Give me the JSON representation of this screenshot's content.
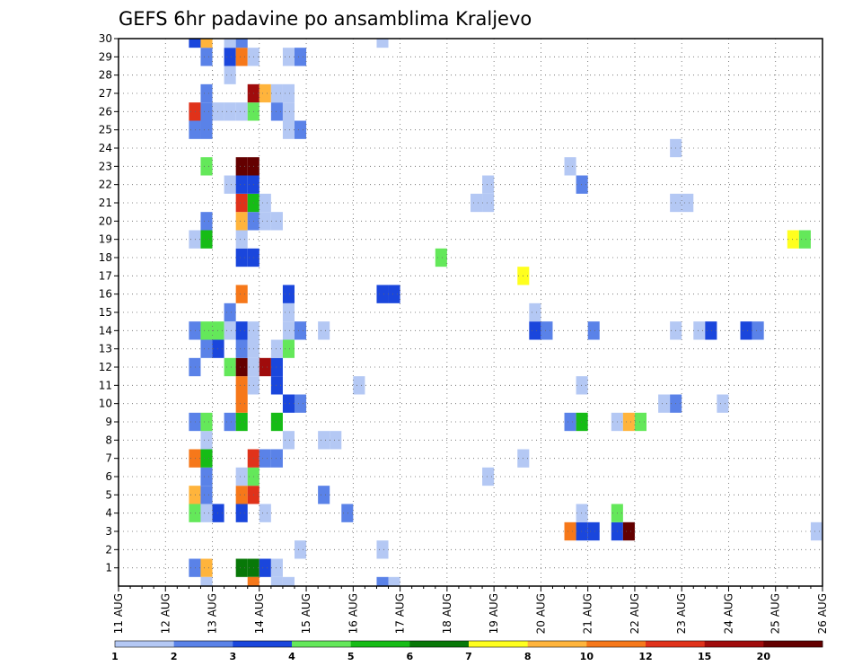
{
  "chart_data": {
    "type": "heatmap",
    "title": "GEFS 6hr padavine po ansamblima Kraljevo",
    "xlabel": "",
    "ylabel": "",
    "x_tick_labels": [
      "11 AUG",
      "12 AUG",
      "13 AUG",
      "14 AUG",
      "15 AUG",
      "16 AUG",
      "17 AUG",
      "18 AUG",
      "19 AUG",
      "20 AUG",
      "21 AUG",
      "22 AUG",
      "23 AUG",
      "24 AUG",
      "25 AUG",
      "26 AUG"
    ],
    "y_tick_labels": [
      "1",
      "2",
      "3",
      "4",
      "5",
      "6",
      "7",
      "8",
      "9",
      "10",
      "11",
      "12",
      "13",
      "14",
      "15",
      "16",
      "17",
      "18",
      "19",
      "20",
      "21",
      "22",
      "23",
      "24",
      "25",
      "26",
      "27",
      "28",
      "29",
      "30"
    ],
    "x_range_6h_steps": [
      0,
      60
    ],
    "y_range_members": [
      0,
      30
    ],
    "grid": true,
    "colorbar": {
      "labels": [
        "1",
        "2",
        "3",
        "4",
        "5",
        "6",
        "7",
        "8",
        "10",
        "12",
        "15",
        "20"
      ],
      "colors": [
        "#b4c8f4",
        "#5a82e8",
        "#1a46dc",
        "#64e85a",
        "#16bc16",
        "#087808",
        "#ffff1e",
        "#ffb43c",
        "#f6781a",
        "#e0321a",
        "#a00c0c",
        "#640000"
      ]
    },
    "cells": [
      {
        "step": 6.5,
        "member": 1,
        "value": 2
      },
      {
        "step": 7.5,
        "member": 1,
        "value": 8
      },
      {
        "step": 10.5,
        "member": 1,
        "value": 6
      },
      {
        "step": 11.5,
        "member": 1,
        "value": 6
      },
      {
        "step": 12.5,
        "member": 1,
        "value": 3
      },
      {
        "step": 13.5,
        "member": 1,
        "value": 1
      },
      {
        "step": 15.5,
        "member": 2,
        "value": 1
      },
      {
        "step": 22.5,
        "member": 2,
        "value": 1
      },
      {
        "step": 38.5,
        "member": 3,
        "value": 10
      },
      {
        "step": 39.5,
        "member": 3,
        "value": 3
      },
      {
        "step": 40.5,
        "member": 3,
        "value": 3
      },
      {
        "step": 42.5,
        "member": 3,
        "value": 3
      },
      {
        "step": 43.5,
        "member": 3,
        "value": 20
      },
      {
        "step": 59.5,
        "member": 3,
        "value": 1
      },
      {
        "step": 6.5,
        "member": 4,
        "value": 4
      },
      {
        "step": 7.5,
        "member": 4,
        "value": 1
      },
      {
        "step": 8.5,
        "member": 4,
        "value": 3
      },
      {
        "step": 10.5,
        "member": 4,
        "value": 3
      },
      {
        "step": 12.5,
        "member": 4,
        "value": 1
      },
      {
        "step": 19.5,
        "member": 4,
        "value": 2
      },
      {
        "step": 39.5,
        "member": 4,
        "value": 1
      },
      {
        "step": 42.5,
        "member": 4,
        "value": 4
      },
      {
        "step": 6.5,
        "member": 5,
        "value": 8
      },
      {
        "step": 7.5,
        "member": 5,
        "value": 2
      },
      {
        "step": 10.5,
        "member": 5,
        "value": 10
      },
      {
        "step": 11.5,
        "member": 5,
        "value": 12
      },
      {
        "step": 17.5,
        "member": 5,
        "value": 2
      },
      {
        "step": 7.5,
        "member": 6,
        "value": 2
      },
      {
        "step": 10.5,
        "member": 6,
        "value": 1
      },
      {
        "step": 11.5,
        "member": 6,
        "value": 4
      },
      {
        "step": 31.5,
        "member": 6,
        "value": 1
      },
      {
        "step": 6.5,
        "member": 7,
        "value": 10
      },
      {
        "step": 7.5,
        "member": 7,
        "value": 5
      },
      {
        "step": 11.5,
        "member": 7,
        "value": 12
      },
      {
        "step": 12.5,
        "member": 7,
        "value": 2
      },
      {
        "step": 13.5,
        "member": 7,
        "value": 2
      },
      {
        "step": 34.5,
        "member": 7,
        "value": 1
      },
      {
        "step": 7.5,
        "member": 8,
        "value": 1
      },
      {
        "step": 14.5,
        "member": 8,
        "value": 1
      },
      {
        "step": 17.5,
        "member": 8,
        "value": 1
      },
      {
        "step": 18.5,
        "member": 8,
        "value": 1
      },
      {
        "step": 6.5,
        "member": 9,
        "value": 2
      },
      {
        "step": 7.5,
        "member": 9,
        "value": 4
      },
      {
        "step": 9.5,
        "member": 9,
        "value": 2
      },
      {
        "step": 10.5,
        "member": 9,
        "value": 5
      },
      {
        "step": 13.5,
        "member": 9,
        "value": 5
      },
      {
        "step": 38.5,
        "member": 9,
        "value": 2
      },
      {
        "step": 39.5,
        "member": 9,
        "value": 5
      },
      {
        "step": 42.5,
        "member": 9,
        "value": 1
      },
      {
        "step": 43.5,
        "member": 9,
        "value": 8
      },
      {
        "step": 44.5,
        "member": 9,
        "value": 4
      },
      {
        "step": 10.5,
        "member": 10,
        "value": 10
      },
      {
        "step": 14.5,
        "member": 10,
        "value": 3
      },
      {
        "step": 15.5,
        "member": 10,
        "value": 2
      },
      {
        "step": 46.5,
        "member": 10,
        "value": 1
      },
      {
        "step": 47.5,
        "member": 10,
        "value": 2
      },
      {
        "step": 51.5,
        "member": 10,
        "value": 1
      },
      {
        "step": 10.5,
        "member": 11,
        "value": 10
      },
      {
        "step": 11.5,
        "member": 11,
        "value": 1
      },
      {
        "step": 13.5,
        "member": 11,
        "value": 3
      },
      {
        "step": 20.5,
        "member": 11,
        "value": 1
      },
      {
        "step": 39.5,
        "member": 11,
        "value": 1
      },
      {
        "step": 6.5,
        "member": 12,
        "value": 2
      },
      {
        "step": 9.5,
        "member": 12,
        "value": 4
      },
      {
        "step": 10.5,
        "member": 12,
        "value": 20
      },
      {
        "step": 11.5,
        "member": 12,
        "value": 1
      },
      {
        "step": 12.5,
        "member": 12,
        "value": 15
      },
      {
        "step": 13.5,
        "member": 12,
        "value": 3
      },
      {
        "step": 7.5,
        "member": 13,
        "value": 2
      },
      {
        "step": 8.5,
        "member": 13,
        "value": 3
      },
      {
        "step": 10.5,
        "member": 13,
        "value": 2
      },
      {
        "step": 11.5,
        "member": 13,
        "value": 1
      },
      {
        "step": 13.5,
        "member": 13,
        "value": 1
      },
      {
        "step": 14.5,
        "member": 13,
        "value": 4
      },
      {
        "step": 6.5,
        "member": 14,
        "value": 2
      },
      {
        "step": 7.5,
        "member": 14,
        "value": 4
      },
      {
        "step": 8.5,
        "member": 14,
        "value": 4
      },
      {
        "step": 9.5,
        "member": 14,
        "value": 1
      },
      {
        "step": 10.5,
        "member": 14,
        "value": 3
      },
      {
        "step": 11.5,
        "member": 14,
        "value": 1
      },
      {
        "step": 14.5,
        "member": 14,
        "value": 1
      },
      {
        "step": 15.5,
        "member": 14,
        "value": 2
      },
      {
        "step": 17.5,
        "member": 14,
        "value": 1
      },
      {
        "step": 35.5,
        "member": 14,
        "value": 3
      },
      {
        "step": 36.5,
        "member": 14,
        "value": 2
      },
      {
        "step": 40.5,
        "member": 14,
        "value": 2
      },
      {
        "step": 47.5,
        "member": 14,
        "value": 1
      },
      {
        "step": 49.5,
        "member": 14,
        "value": 1
      },
      {
        "step": 50.5,
        "member": 14,
        "value": 3
      },
      {
        "step": 53.5,
        "member": 14,
        "value": 3
      },
      {
        "step": 54.5,
        "member": 14,
        "value": 2
      },
      {
        "step": 9.5,
        "member": 15,
        "value": 2
      },
      {
        "step": 14.5,
        "member": 15,
        "value": 1
      },
      {
        "step": 35.5,
        "member": 15,
        "value": 1
      },
      {
        "step": 10.5,
        "member": 16,
        "value": 10
      },
      {
        "step": 14.5,
        "member": 16,
        "value": 3
      },
      {
        "step": 22.5,
        "member": 16,
        "value": 3
      },
      {
        "step": 23.5,
        "member": 16,
        "value": 3
      },
      {
        "step": 34.5,
        "member": 17,
        "value": 7
      },
      {
        "step": 10.5,
        "member": 18,
        "value": 3
      },
      {
        "step": 11.5,
        "member": 18,
        "value": 3
      },
      {
        "step": 27.5,
        "member": 18,
        "value": 4
      },
      {
        "step": 6.5,
        "member": 19,
        "value": 1
      },
      {
        "step": 7.5,
        "member": 19,
        "value": 5
      },
      {
        "step": 10.5,
        "member": 19,
        "value": 1
      },
      {
        "step": 57.5,
        "member": 19,
        "value": 7
      },
      {
        "step": 58.5,
        "member": 19,
        "value": 4
      },
      {
        "step": 7.5,
        "member": 20,
        "value": 2
      },
      {
        "step": 10.5,
        "member": 20,
        "value": 8
      },
      {
        "step": 11.5,
        "member": 20,
        "value": 2
      },
      {
        "step": 12.5,
        "member": 20,
        "value": 1
      },
      {
        "step": 13.5,
        "member": 20,
        "value": 1
      },
      {
        "step": 10.5,
        "member": 21,
        "value": 12
      },
      {
        "step": 11.5,
        "member": 21,
        "value": 5
      },
      {
        "step": 12.5,
        "member": 21,
        "value": 1
      },
      {
        "step": 30.5,
        "member": 21,
        "value": 1
      },
      {
        "step": 31.5,
        "member": 21,
        "value": 1
      },
      {
        "step": 47.5,
        "member": 21,
        "value": 1
      },
      {
        "step": 48.5,
        "member": 21,
        "value": 1
      },
      {
        "step": 9.5,
        "member": 22,
        "value": 1
      },
      {
        "step": 10.5,
        "member": 22,
        "value": 3
      },
      {
        "step": 11.5,
        "member": 22,
        "value": 3
      },
      {
        "step": 31.5,
        "member": 22,
        "value": 1
      },
      {
        "step": 39.5,
        "member": 22,
        "value": 2
      },
      {
        "step": 7.5,
        "member": 23,
        "value": 4
      },
      {
        "step": 10.5,
        "member": 23,
        "value": 20
      },
      {
        "step": 11.5,
        "member": 23,
        "value": 20
      },
      {
        "step": 38.5,
        "member": 23,
        "value": 1
      },
      {
        "step": 47.5,
        "member": 24,
        "value": 1
      },
      {
        "step": 6.5,
        "member": 25,
        "value": 2
      },
      {
        "step": 7.5,
        "member": 25,
        "value": 2
      },
      {
        "step": 14.5,
        "member": 25,
        "value": 1
      },
      {
        "step": 15.5,
        "member": 25,
        "value": 2
      },
      {
        "step": 6.5,
        "member": 26,
        "value": 12
      },
      {
        "step": 7.5,
        "member": 26,
        "value": 2
      },
      {
        "step": 8.5,
        "member": 26,
        "value": 1
      },
      {
        "step": 9.5,
        "member": 26,
        "value": 1
      },
      {
        "step": 10.5,
        "member": 26,
        "value": 1
      },
      {
        "step": 11.5,
        "member": 26,
        "value": 4
      },
      {
        "step": 13.5,
        "member": 26,
        "value": 2
      },
      {
        "step": 14.5,
        "member": 26,
        "value": 1
      },
      {
        "step": 7.5,
        "member": 27,
        "value": 2
      },
      {
        "step": 11.5,
        "member": 27,
        "value": 15
      },
      {
        "step": 12.5,
        "member": 27,
        "value": 8
      },
      {
        "step": 13.5,
        "member": 27,
        "value": 1
      },
      {
        "step": 14.5,
        "member": 27,
        "value": 1
      },
      {
        "step": 9.5,
        "member": 28,
        "value": 1
      },
      {
        "step": 7.5,
        "member": 29,
        "value": 2
      },
      {
        "step": 9.5,
        "member": 29,
        "value": 3
      },
      {
        "step": 10.5,
        "member": 29,
        "value": 10
      },
      {
        "step": 11.5,
        "member": 29,
        "value": 1
      },
      {
        "step": 14.5,
        "member": 29,
        "value": 1
      },
      {
        "step": 15.5,
        "member": 29,
        "value": 2
      },
      {
        "step": 6.5,
        "member": 30,
        "value": 3
      },
      {
        "step": 7.5,
        "member": 30,
        "value": 8
      },
      {
        "step": 9.5,
        "member": 30,
        "value": 1
      },
      {
        "step": 10.5,
        "member": 30,
        "value": 2
      },
      {
        "step": 22.5,
        "member": 30,
        "value": 1
      },
      {
        "step": 7.5,
        "member": 0,
        "value": 1
      },
      {
        "step": 11.5,
        "member": 0,
        "value": 10
      },
      {
        "step": 13.5,
        "member": 0,
        "value": 1
      },
      {
        "step": 14.5,
        "member": 0,
        "value": 1
      },
      {
        "step": 22.5,
        "member": 0,
        "value": 2
      },
      {
        "step": 23.5,
        "member": 0,
        "value": 1
      }
    ]
  }
}
